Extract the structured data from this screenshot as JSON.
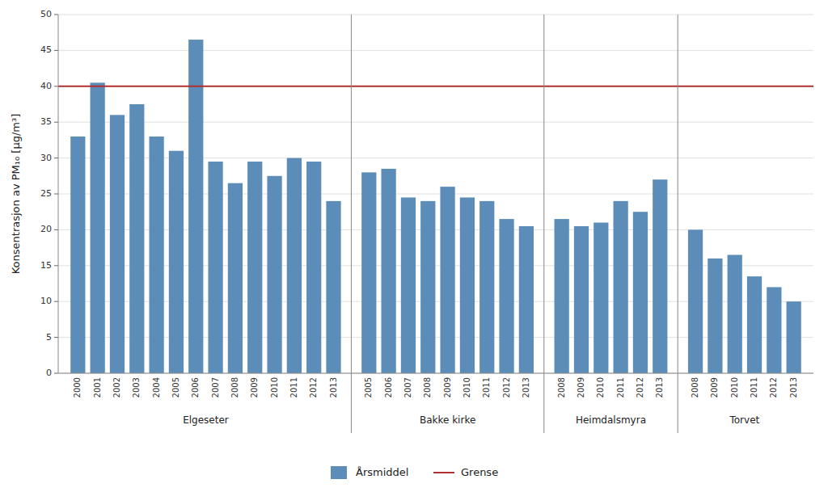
{
  "chart_data": {
    "type": "bar",
    "ylabel": "Konsentrasjon av PM₁₀ [μg/m³]",
    "ylim": [
      0,
      50
    ],
    "yticks": [
      0,
      5,
      10,
      15,
      20,
      25,
      30,
      35,
      40,
      45,
      50
    ],
    "grid": true,
    "legend": "bottom",
    "series": [
      {
        "name": "Årsmiddel",
        "type": "bar",
        "color": "#5B8DB8",
        "groups": [
          {
            "name": "Elgeseter",
            "categories": [
              "2000",
              "2001",
              "2002",
              "2003",
              "2004",
              "2005",
              "2006",
              "2007",
              "2008",
              "2009",
              "2010",
              "2011",
              "2012",
              "2013"
            ],
            "values": [
              33,
              40.5,
              36,
              37.5,
              33,
              31,
              46.5,
              29.5,
              26.5,
              29.5,
              27.5,
              30,
              29.5,
              24
            ]
          },
          {
            "name": "Bakke kirke",
            "categories": [
              "2005",
              "2006",
              "2007",
              "2008",
              "2009",
              "2010",
              "2011",
              "2012",
              "2013"
            ],
            "values": [
              28,
              28.5,
              24.5,
              24,
              26,
              24.5,
              24,
              21.5,
              20.5
            ]
          },
          {
            "name": "Heimdalsmyra",
            "categories": [
              "2008",
              "2009",
              "2010",
              "2011",
              "2012",
              "2013"
            ],
            "values": [
              21.5,
              20.5,
              21,
              24,
              22.5,
              27
            ]
          },
          {
            "name": "Torvet",
            "categories": [
              "2008",
              "2009",
              "2010",
              "2011",
              "2012",
              "2013"
            ],
            "values": [
              20,
              16,
              16.5,
              13.5,
              12,
              10
            ]
          }
        ]
      },
      {
        "name": "Grense",
        "type": "line",
        "color": "#B03030",
        "value": 40
      }
    ]
  }
}
